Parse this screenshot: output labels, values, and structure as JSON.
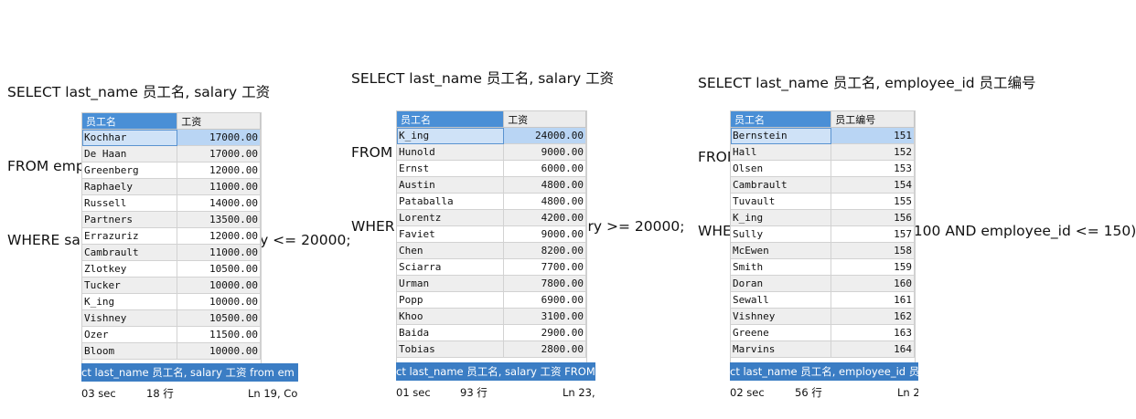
{
  "panels": [
    {
      "sql": [
        "SELECT last_name 员工名, salary 工资",
        "FROM employees",
        "WHERE salary >= 10000 AND salary <= 20000;"
      ],
      "columns": [
        "员工名",
        "工资"
      ],
      "rows": [
        [
          "Kochhar",
          "17000.00"
        ],
        [
          "De Haan",
          "17000.00"
        ],
        [
          "Greenberg",
          "12000.00"
        ],
        [
          "Raphaely",
          "11000.00"
        ],
        [
          "Russell",
          "14000.00"
        ],
        [
          "Partners",
          "13500.00"
        ],
        [
          "Errazuriz",
          "12000.00"
        ],
        [
          "Cambrault",
          "11000.00"
        ],
        [
          "Zlotkey",
          "10500.00"
        ],
        [
          "Tucker",
          "10000.00"
        ],
        [
          "K_ing",
          "10000.00"
        ],
        [
          "Vishney",
          "10500.00"
        ],
        [
          "Ozer",
          "11500.00"
        ],
        [
          "Bloom",
          "10000.00"
        ]
      ],
      "status_text": "ct last_name 员工名, salary 工资 from em",
      "footer": {
        "time": "03 sec",
        "rows": "18 行",
        "pos": "Ln 19, Co"
      }
    },
    {
      "sql": [
        "SELECT last_name 员工名, salary 工资",
        "FROM employees",
        "WHERE salary <= 10000 OR salary >= 20000;"
      ],
      "columns": [
        "员工名",
        "工资"
      ],
      "rows": [
        [
          "K_ing",
          "24000.00"
        ],
        [
          "Hunold",
          "9000.00"
        ],
        [
          "Ernst",
          "6000.00"
        ],
        [
          "Austin",
          "4800.00"
        ],
        [
          "Pataballa",
          "4800.00"
        ],
        [
          "Lorentz",
          "4200.00"
        ],
        [
          "Faviet",
          "9000.00"
        ],
        [
          "Chen",
          "8200.00"
        ],
        [
          "Sciarra",
          "7700.00"
        ],
        [
          "Urman",
          "7800.00"
        ],
        [
          "Popp",
          "6900.00"
        ],
        [
          "Khoo",
          "3100.00"
        ],
        [
          "Baida",
          "2900.00"
        ],
        [
          "Tobias",
          "2800.00"
        ]
      ],
      "status_text": "ct last_name 员工名, salary 工资 FROM",
      "footer": {
        "time": "01 sec",
        "rows": "93 行",
        "pos": "Ln 23,"
      }
    },
    {
      "sql": [
        "SELECT last_name 员工名, employee_id 员工编号",
        "FROM employees",
        "WHERE NOT(employee_id >= 100 AND employee_id <= 150);"
      ],
      "columns": [
        "员工名",
        "员工编号"
      ],
      "rows": [
        [
          "Bernstein",
          "151"
        ],
        [
          "Hall",
          "152"
        ],
        [
          "Olsen",
          "153"
        ],
        [
          "Cambrault",
          "154"
        ],
        [
          "Tuvault",
          "155"
        ],
        [
          "K_ing",
          "156"
        ],
        [
          "Sully",
          "157"
        ],
        [
          "McEwen",
          "158"
        ],
        [
          "Smith",
          "159"
        ],
        [
          "Doran",
          "160"
        ],
        [
          "Sewall",
          "161"
        ],
        [
          "Vishney",
          "162"
        ],
        [
          "Greene",
          "163"
        ],
        [
          "Marvins",
          "164"
        ]
      ],
      "status_text": "ct last_name 员工名, employee_id 员",
      "footer": {
        "time": "02 sec",
        "rows": "56 行",
        "pos": "Ln 2"
      }
    }
  ]
}
